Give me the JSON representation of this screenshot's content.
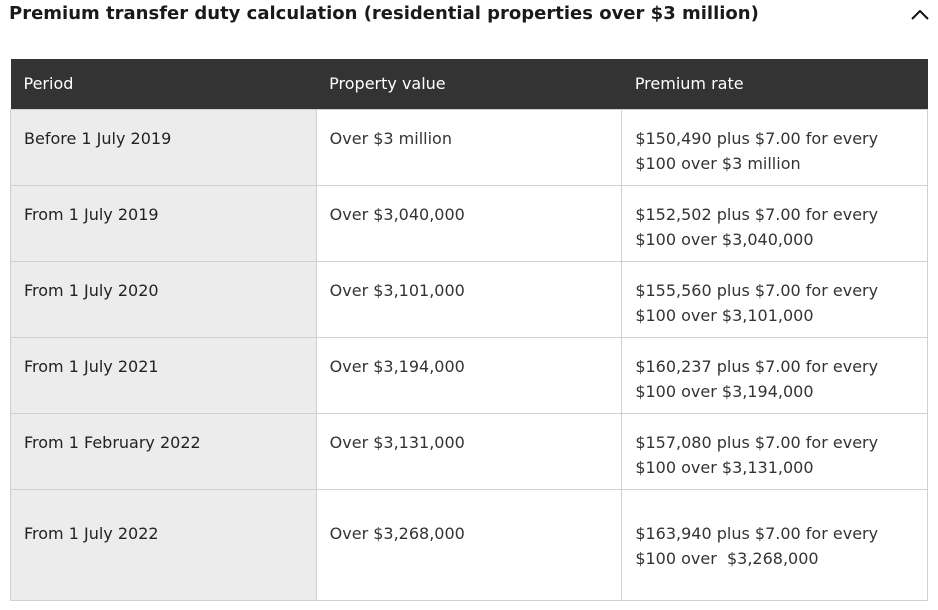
{
  "header": {
    "title": "Premium transfer duty calculation (residential properties over $3 million)"
  },
  "table": {
    "columns": [
      "Period",
      "Property value",
      "Premium rate"
    ],
    "rows": [
      [
        "Before 1 July 2019",
        "Over $3 million",
        "$150,490 plus $7.00 for every $100 over $3 million"
      ],
      [
        "From 1 July 2019",
        "Over $3,040,000",
        "$152,502 plus $7.00 for every $100 over $3,040,000"
      ],
      [
        "From 1 July 2020",
        "Over $3,101,000",
        "$155,560 plus $7.00 for every $100 over $3,101,000"
      ],
      [
        "From 1 July 2021",
        "Over $3,194,000",
        "$160,237 plus $7.00 for every $100 over $3,194,000"
      ],
      [
        "From 1 February 2022",
        "Over $3,131,000",
        "$157,080 plus $7.00 for every $100 over $3,131,000"
      ],
      [
        "From 1 July 2022",
        "Over $3,268,000",
        "$163,940 plus $7.00 for every $100 over  $3,268,000"
      ]
    ]
  }
}
